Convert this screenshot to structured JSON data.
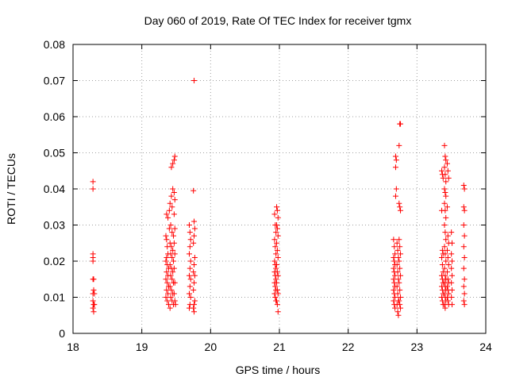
{
  "chart_data": {
    "type": "scatter",
    "title": "Day 060 of 2019, Rate Of TEC Index for receiver tgmx",
    "xlabel": "GPS time / hours",
    "ylabel": "ROTI / TECUs",
    "xlim": [
      18,
      24
    ],
    "ylim": [
      0,
      0.08
    ],
    "x_ticks": [
      "18",
      "19",
      "20",
      "21",
      "22",
      "23",
      "24"
    ],
    "y_ticks": [
      "0",
      "0.01",
      "0.02",
      "0.03",
      "0.04",
      "0.05",
      "0.06",
      "0.07",
      "0.08"
    ],
    "grid": true,
    "marker": "+",
    "color": "#ff0000",
    "series": [
      {
        "name": "ROTI",
        "points": [
          [
            18.29,
            0.042
          ],
          [
            18.29,
            0.04
          ],
          [
            18.29,
            0.022
          ],
          [
            18.29,
            0.021
          ],
          [
            18.29,
            0.02
          ],
          [
            18.29,
            0.015
          ],
          [
            18.3,
            0.015
          ],
          [
            18.3,
            0.012
          ],
          [
            18.29,
            0.011
          ],
          [
            18.31,
            0.011
          ],
          [
            18.29,
            0.009
          ],
          [
            18.3,
            0.008
          ],
          [
            18.31,
            0.008
          ],
          [
            18.29,
            0.007
          ],
          [
            18.3,
            0.006
          ],
          [
            19.35,
            0.027
          ],
          [
            19.36,
            0.026
          ],
          [
            19.37,
            0.024
          ],
          [
            19.38,
            0.022
          ],
          [
            19.36,
            0.021
          ],
          [
            19.35,
            0.02
          ],
          [
            19.37,
            0.019
          ],
          [
            19.39,
            0.018
          ],
          [
            19.36,
            0.017
          ],
          [
            19.38,
            0.016
          ],
          [
            19.35,
            0.015
          ],
          [
            19.37,
            0.014
          ],
          [
            19.39,
            0.013
          ],
          [
            19.36,
            0.012
          ],
          [
            19.38,
            0.011
          ],
          [
            19.35,
            0.01
          ],
          [
            19.37,
            0.009
          ],
          [
            19.39,
            0.008
          ],
          [
            19.36,
            0.033
          ],
          [
            19.38,
            0.032
          ],
          [
            19.4,
            0.034
          ],
          [
            19.41,
            0.036
          ],
          [
            19.43,
            0.038
          ],
          [
            19.45,
            0.04
          ],
          [
            19.42,
            0.03
          ],
          [
            19.44,
            0.028
          ],
          [
            19.46,
            0.027
          ],
          [
            19.41,
            0.025
          ],
          [
            19.43,
            0.024
          ],
          [
            19.45,
            0.023
          ],
          [
            19.42,
            0.022
          ],
          [
            19.44,
            0.021
          ],
          [
            19.46,
            0.02
          ],
          [
            19.41,
            0.019
          ],
          [
            19.43,
            0.018
          ],
          [
            19.45,
            0.017
          ],
          [
            19.42,
            0.016
          ],
          [
            19.44,
            0.015
          ],
          [
            19.46,
            0.014
          ],
          [
            19.41,
            0.013
          ],
          [
            19.43,
            0.012
          ],
          [
            19.45,
            0.011
          ],
          [
            19.42,
            0.01
          ],
          [
            19.44,
            0.009
          ],
          [
            19.46,
            0.008
          ],
          [
            19.41,
            0.007
          ],
          [
            19.43,
            0.046
          ],
          [
            19.45,
            0.047
          ],
          [
            19.47,
            0.048
          ],
          [
            19.48,
            0.049
          ],
          [
            19.47,
            0.039
          ],
          [
            19.48,
            0.037
          ],
          [
            19.47,
            0.033
          ],
          [
            19.48,
            0.029
          ],
          [
            19.47,
            0.025
          ],
          [
            19.48,
            0.022
          ],
          [
            19.47,
            0.018
          ],
          [
            19.48,
            0.014
          ],
          [
            19.47,
            0.011
          ],
          [
            19.48,
            0.009
          ],
          [
            19.49,
            0.008
          ],
          [
            19.4,
            0.029
          ],
          [
            19.44,
            0.035
          ],
          [
            19.69,
            0.03
          ],
          [
            19.7,
            0.028
          ],
          [
            19.71,
            0.026
          ],
          [
            19.7,
            0.024
          ],
          [
            19.69,
            0.022
          ],
          [
            19.71,
            0.02
          ],
          [
            19.7,
            0.018
          ],
          [
            19.69,
            0.016
          ],
          [
            19.71,
            0.015
          ],
          [
            19.7,
            0.013
          ],
          [
            19.69,
            0.011
          ],
          [
            19.71,
            0.01
          ],
          [
            19.7,
            0.008
          ],
          [
            19.69,
            0.007
          ],
          [
            19.76,
            0.07
          ],
          [
            19.75,
            0.0395
          ],
          [
            19.76,
            0.031
          ],
          [
            19.77,
            0.029
          ],
          [
            19.76,
            0.027
          ],
          [
            19.75,
            0.025
          ],
          [
            19.77,
            0.021
          ],
          [
            19.76,
            0.019
          ],
          [
            19.75,
            0.017
          ],
          [
            19.77,
            0.016
          ],
          [
            19.76,
            0.014
          ],
          [
            19.75,
            0.012
          ],
          [
            19.77,
            0.009
          ],
          [
            19.76,
            0.008
          ],
          [
            19.75,
            0.007
          ],
          [
            19.76,
            0.006
          ],
          [
            20.93,
            0.033
          ],
          [
            20.94,
            0.03
          ],
          [
            20.95,
            0.028
          ],
          [
            20.93,
            0.026
          ],
          [
            20.94,
            0.024
          ],
          [
            20.95,
            0.022
          ],
          [
            20.93,
            0.02
          ],
          [
            20.94,
            0.019
          ],
          [
            20.95,
            0.018
          ],
          [
            20.93,
            0.017
          ],
          [
            20.94,
            0.016
          ],
          [
            20.95,
            0.015
          ],
          [
            20.93,
            0.014
          ],
          [
            20.94,
            0.013
          ],
          [
            20.95,
            0.012
          ],
          [
            20.93,
            0.011
          ],
          [
            20.94,
            0.01
          ],
          [
            20.95,
            0.009
          ],
          [
            20.96,
            0.035
          ],
          [
            20.97,
            0.034
          ],
          [
            20.98,
            0.032
          ],
          [
            20.96,
            0.03
          ],
          [
            20.97,
            0.029
          ],
          [
            20.98,
            0.027
          ],
          [
            20.96,
            0.025
          ],
          [
            20.97,
            0.023
          ],
          [
            20.98,
            0.021
          ],
          [
            20.96,
            0.019
          ],
          [
            20.97,
            0.017
          ],
          [
            20.98,
            0.016
          ],
          [
            20.96,
            0.014
          ],
          [
            20.97,
            0.012
          ],
          [
            20.98,
            0.011
          ],
          [
            20.96,
            0.009
          ],
          [
            20.97,
            0.008
          ],
          [
            20.98,
            0.006
          ],
          [
            22.66,
            0.026
          ],
          [
            22.67,
            0.024
          ],
          [
            22.68,
            0.022
          ],
          [
            22.66,
            0.021
          ],
          [
            22.67,
            0.02
          ],
          [
            22.68,
            0.019
          ],
          [
            22.66,
            0.018
          ],
          [
            22.67,
            0.017
          ],
          [
            22.68,
            0.016
          ],
          [
            22.66,
            0.015
          ],
          [
            22.67,
            0.014
          ],
          [
            22.68,
            0.013
          ],
          [
            22.66,
            0.012
          ],
          [
            22.67,
            0.011
          ],
          [
            22.68,
            0.01
          ],
          [
            22.66,
            0.009
          ],
          [
            22.67,
            0.008
          ],
          [
            22.68,
            0.007
          ],
          [
            22.69,
            0.049
          ],
          [
            22.7,
            0.048
          ],
          [
            22.69,
            0.046
          ],
          [
            22.7,
            0.04
          ],
          [
            22.69,
            0.038
          ],
          [
            22.71,
            0.025
          ],
          [
            22.72,
            0.023
          ],
          [
            22.73,
            0.021
          ],
          [
            22.71,
            0.019
          ],
          [
            22.72,
            0.017
          ],
          [
            22.73,
            0.015
          ],
          [
            22.71,
            0.013
          ],
          [
            22.72,
            0.011
          ],
          [
            22.73,
            0.009
          ],
          [
            22.71,
            0.008
          ],
          [
            22.72,
            0.006
          ],
          [
            22.73,
            0.005
          ],
          [
            22.74,
            0.052
          ],
          [
            22.75,
            0.058
          ],
          [
            22.76,
            0.058
          ],
          [
            22.74,
            0.036
          ],
          [
            22.75,
            0.035
          ],
          [
            22.76,
            0.034
          ],
          [
            22.74,
            0.026
          ],
          [
            22.75,
            0.024
          ],
          [
            22.76,
            0.022
          ],
          [
            22.74,
            0.02
          ],
          [
            22.75,
            0.018
          ],
          [
            22.76,
            0.016
          ],
          [
            22.74,
            0.014
          ],
          [
            22.75,
            0.012
          ],
          [
            22.76,
            0.01
          ],
          [
            22.74,
            0.009
          ],
          [
            22.75,
            0.008
          ],
          [
            22.76,
            0.007
          ],
          [
            23.36,
            0.045
          ],
          [
            23.37,
            0.044
          ],
          [
            23.38,
            0.043
          ],
          [
            23.36,
            0.034
          ],
          [
            23.37,
            0.023
          ],
          [
            23.38,
            0.022
          ],
          [
            23.36,
            0.021
          ],
          [
            23.37,
            0.019
          ],
          [
            23.38,
            0.017
          ],
          [
            23.36,
            0.016
          ],
          [
            23.37,
            0.015
          ],
          [
            23.38,
            0.014
          ],
          [
            23.36,
            0.013
          ],
          [
            23.37,
            0.012
          ],
          [
            23.38,
            0.011
          ],
          [
            23.36,
            0.01
          ],
          [
            23.37,
            0.009
          ],
          [
            23.38,
            0.008
          ],
          [
            23.4,
            0.052
          ],
          [
            23.41,
            0.049
          ],
          [
            23.42,
            0.048
          ],
          [
            23.4,
            0.046
          ],
          [
            23.41,
            0.044
          ],
          [
            23.42,
            0.042
          ],
          [
            23.4,
            0.04
          ],
          [
            23.41,
            0.039
          ],
          [
            23.42,
            0.038
          ],
          [
            23.4,
            0.036
          ],
          [
            23.41,
            0.034
          ],
          [
            23.42,
            0.032
          ],
          [
            23.4,
            0.03
          ],
          [
            23.41,
            0.028
          ],
          [
            23.42,
            0.026
          ],
          [
            23.4,
            0.024
          ],
          [
            23.41,
            0.022
          ],
          [
            23.42,
            0.02
          ],
          [
            23.4,
            0.018
          ],
          [
            23.41,
            0.016
          ],
          [
            23.42,
            0.015
          ],
          [
            23.4,
            0.014
          ],
          [
            23.41,
            0.013
          ],
          [
            23.42,
            0.012
          ],
          [
            23.4,
            0.011
          ],
          [
            23.41,
            0.01
          ],
          [
            23.42,
            0.009
          ],
          [
            23.4,
            0.008
          ],
          [
            23.41,
            0.007
          ],
          [
            23.44,
            0.047
          ],
          [
            23.45,
            0.045
          ],
          [
            23.46,
            0.043
          ],
          [
            23.44,
            0.035
          ],
          [
            23.45,
            0.027
          ],
          [
            23.46,
            0.025
          ],
          [
            23.44,
            0.023
          ],
          [
            23.45,
            0.021
          ],
          [
            23.46,
            0.019
          ],
          [
            23.44,
            0.017
          ],
          [
            23.45,
            0.015
          ],
          [
            23.46,
            0.014
          ],
          [
            23.44,
            0.013
          ],
          [
            23.45,
            0.012
          ],
          [
            23.46,
            0.011
          ],
          [
            23.44,
            0.01
          ],
          [
            23.45,
            0.009
          ],
          [
            23.46,
            0.008
          ],
          [
            23.5,
            0.028
          ],
          [
            23.51,
            0.025
          ],
          [
            23.5,
            0.022
          ],
          [
            23.51,
            0.02
          ],
          [
            23.5,
            0.018
          ],
          [
            23.51,
            0.016
          ],
          [
            23.5,
            0.014
          ],
          [
            23.51,
            0.012
          ],
          [
            23.5,
            0.01
          ],
          [
            23.51,
            0.008
          ],
          [
            23.68,
            0.041
          ],
          [
            23.69,
            0.04
          ],
          [
            23.68,
            0.035
          ],
          [
            23.69,
            0.034
          ],
          [
            23.68,
            0.03
          ],
          [
            23.69,
            0.027
          ],
          [
            23.68,
            0.024
          ],
          [
            23.69,
            0.021
          ],
          [
            23.68,
            0.018
          ],
          [
            23.69,
            0.015
          ],
          [
            23.68,
            0.013
          ],
          [
            23.69,
            0.011
          ],
          [
            23.68,
            0.009
          ],
          [
            23.69,
            0.008
          ]
        ]
      }
    ]
  }
}
